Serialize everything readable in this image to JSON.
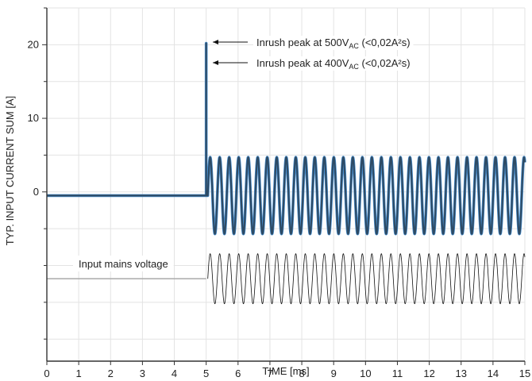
{
  "chart_data": {
    "type": "line",
    "xlabel": "TIME [ms]",
    "ylabel": "TYP. INPUT CURRENT SUM [A]",
    "xlim": [
      0,
      15
    ],
    "ylim": [
      -23,
      25
    ],
    "x_ticks": [
      0,
      1,
      2,
      3,
      4,
      5,
      6,
      7,
      8,
      9,
      10,
      11,
      12,
      13,
      14,
      15
    ],
    "x_tick_labels": [
      "0",
      "1",
      "2",
      "3",
      "4",
      "5",
      "6",
      "7",
      "8",
      "9",
      "10",
      "11",
      "12",
      "13",
      "14",
      "15"
    ],
    "y_ticks": [
      20,
      10,
      0
    ],
    "y_tick_labels": [
      "20",
      "10",
      "0"
    ],
    "grid": true,
    "ac_cycles_per_ms": 3.35,
    "series": [
      {
        "color": "#4a90d0",
        "color2": "#2e4b65",
        "baseline": -0.5,
        "step_at": 5,
        "peak": 20.2,
        "osc_center": -0.5,
        "osc_amplitude": 5.2,
        "osc_start": 5.05,
        "osc_end": 15
      },
      {
        "color": "#111111",
        "baseline": -11.8,
        "step_at": 5,
        "osc_center": -11.8,
        "osc_amplitude": 3.4,
        "osc_start": 5.05,
        "osc_end": 15
      }
    ],
    "annotations": [
      {
        "text": "Inrush peak at 500V",
        "sub": "AC",
        "tail": " (<0,02A²s)"
      },
      {
        "text": "Inrush peak at 400V",
        "sub": "AC",
        "tail": " (<0,02A²s)"
      },
      {
        "text": "Input mains voltage"
      }
    ]
  }
}
